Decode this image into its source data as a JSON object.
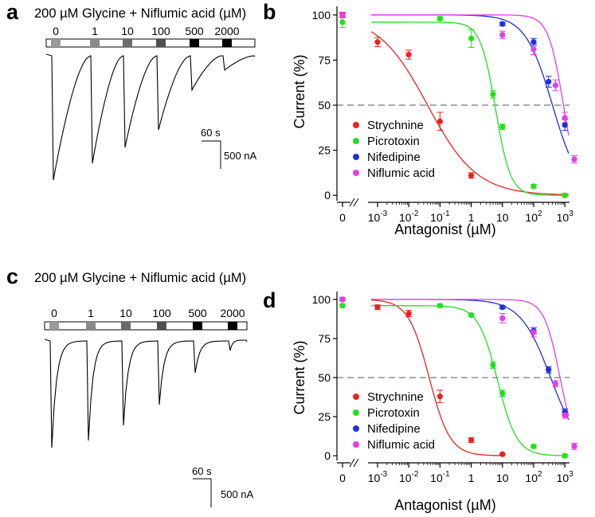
{
  "figure": {
    "panel_letters": [
      "a",
      "b",
      "c",
      "d"
    ],
    "trace_title": "200 µM Glycine + Niflumic acid (µM)",
    "concentration_labels": [
      "0",
      "1",
      "10",
      "100",
      "500",
      "2000"
    ],
    "concentration_bar_colors": [
      "#9a9a9a",
      "#8a8a8a",
      "#6a6a6a",
      "#505050",
      "#000000",
      "#000000"
    ],
    "scale_bar": {
      "time": "60 s",
      "current": "500 nA"
    }
  },
  "chart_data": [
    {
      "panel": "b",
      "type": "scatter",
      "xlabel": "Antagonist (µM)",
      "ylabel": "Current (%)",
      "xscale": "log with zero break",
      "x_tick_labels": [
        "0",
        "10-3",
        "10-2",
        "10-1",
        "1",
        "10",
        "102",
        "103"
      ],
      "y_ticks": [
        0,
        25,
        50,
        75,
        100
      ],
      "ylim": [
        -3,
        103
      ],
      "reference_line_y": 50,
      "legend_position": "lower-left",
      "series": [
        {
          "name": "Strychnine",
          "color": "#e8241f",
          "points": [
            [
              "0",
              100
            ],
            [
              0.001,
              85
            ],
            [
              0.01,
              78
            ],
            [
              0.1,
              41
            ],
            [
              1,
              11
            ]
          ],
          "errors": [
            1.5,
            2.5,
            2.5,
            5,
            1.5
          ],
          "fit": {
            "ic50": 0.04,
            "hill": 0.55
          }
        },
        {
          "name": "Picrotoxin",
          "color": "#22e01f",
          "points": [
            [
              "0",
              96
            ],
            [
              0.1,
              98
            ],
            [
              1,
              87
            ],
            [
              5,
              56
            ],
            [
              10,
              38
            ],
            [
              100,
              5
            ],
            [
              1000,
              0
            ]
          ],
          "errors": [
            3,
            1,
            5,
            2,
            1.5,
            1,
            1
          ],
          "fit": {
            "ic50": 6,
            "hill": 1.8
          }
        },
        {
          "name": "Nifedipine",
          "color": "#1f2fe0",
          "points": [
            [
              "0",
              100
            ],
            [
              10,
              95
            ],
            [
              100,
              85
            ],
            [
              300,
              63
            ],
            [
              1000,
              39
            ]
          ],
          "errors": [
            1,
            1,
            2,
            3,
            3
          ],
          "fit": {
            "ic50": 400,
            "hill": 1.0
          }
        },
        {
          "name": "Niflumic acid",
          "color": "#e83be8",
          "points": [
            [
              "0",
              100
            ],
            [
              10,
              89
            ],
            [
              100,
              81
            ],
            [
              500,
              61
            ],
            [
              1000,
              43
            ],
            [
              2000,
              20
            ]
          ],
          "errors": [
            1,
            2,
            3,
            3,
            3,
            2
          ],
          "fit": {
            "ic50": 900,
            "hill": 1.8
          }
        }
      ]
    },
    {
      "panel": "d",
      "type": "scatter",
      "xlabel": "Antagonist (µM)",
      "ylabel": "Current (%)",
      "xscale": "log with zero break",
      "x_tick_labels": [
        "0",
        "10-3",
        "10-2",
        "10-1",
        "1",
        "10",
        "102",
        "103"
      ],
      "y_ticks": [
        0,
        25,
        50,
        75,
        100
      ],
      "ylim": [
        -3,
        103
      ],
      "reference_line_y": 50,
      "legend_position": "lower-left",
      "series": [
        {
          "name": "Strychnine",
          "color": "#e8241f",
          "points": [
            [
              "0",
              100
            ],
            [
              0.001,
              95
            ],
            [
              0.01,
              91
            ],
            [
              0.1,
              38
            ],
            [
              1,
              10
            ],
            [
              10,
              1
            ]
          ],
          "errors": [
            1,
            1.5,
            2,
            4,
            1.5,
            0.5
          ],
          "fit": {
            "ic50": 0.045,
            "hill": 1.3
          }
        },
        {
          "name": "Picrotoxin",
          "color": "#22e01f",
          "points": [
            [
              "0",
              96
            ],
            [
              0.1,
              96
            ],
            [
              1,
              90
            ],
            [
              5,
              58
            ],
            [
              10,
              40
            ],
            [
              100,
              6
            ],
            [
              1000,
              0
            ]
          ],
          "errors": [
            1,
            1,
            1,
            2,
            2,
            1,
            1
          ],
          "fit": {
            "ic50": 7,
            "hill": 1.4
          }
        },
        {
          "name": "Nifedipine",
          "color": "#1f2fe0",
          "points": [
            [
              "0",
              100
            ],
            [
              10,
              95
            ],
            [
              100,
              80
            ],
            [
              300,
              55
            ],
            [
              1000,
              28
            ]
          ],
          "errors": [
            1,
            1,
            2,
            2,
            2
          ],
          "fit": {
            "ic50": 350,
            "hill": 0.9
          }
        },
        {
          "name": "Niflumic acid",
          "color": "#e83be8",
          "points": [
            [
              "0",
              100
            ],
            [
              10,
              88
            ],
            [
              100,
              79
            ],
            [
              500,
              46
            ],
            [
              1000,
              26
            ],
            [
              2000,
              6
            ]
          ],
          "errors": [
            1,
            3,
            3,
            2,
            2,
            2
          ],
          "fit": {
            "ic50": 700,
            "hill": 1.7
          }
        }
      ]
    }
  ]
}
